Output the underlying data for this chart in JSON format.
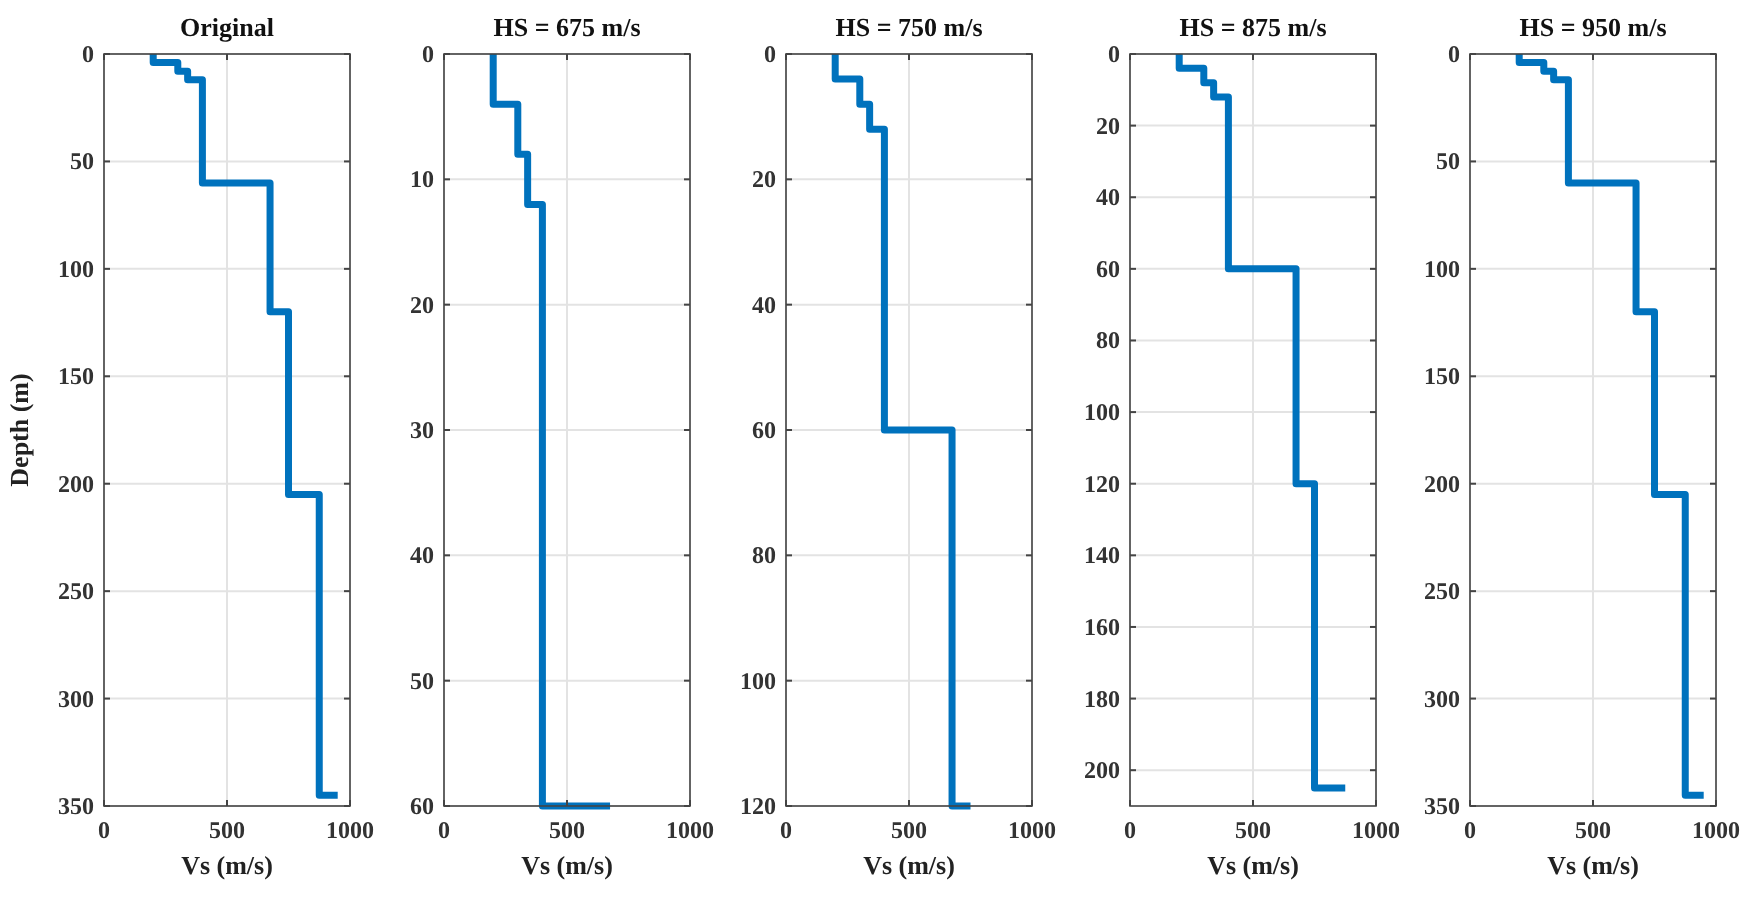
{
  "chart_data": [
    {
      "type": "line",
      "title": "Original",
      "xlabel": "Vs (m/s)",
      "ylabel": "Depth (m)",
      "xlim": [
        0,
        1000
      ],
      "xticks": [
        0,
        500,
        1000
      ],
      "ylim": [
        350,
        0
      ],
      "yticks": [
        0,
        50,
        100,
        150,
        200,
        250,
        300,
        350
      ],
      "grid": true,
      "line_style": "solid",
      "series": [
        {
          "color": "#0072bd",
          "x": [
            200,
            200,
            300,
            300,
            340,
            340,
            400,
            400,
            675,
            675,
            750,
            750,
            875,
            875,
            950
          ],
          "values": [
            0,
            4,
            4,
            8,
            8,
            12,
            12,
            60,
            60,
            120,
            120,
            205,
            205,
            345,
            345
          ]
        }
      ]
    },
    {
      "type": "line",
      "title": "HS = 675 m/s",
      "xlabel": "Vs (m/s)",
      "xlim": [
        0,
        1000
      ],
      "xticks": [
        0,
        500,
        1000
      ],
      "ylim": [
        60,
        0
      ],
      "yticks": [
        0,
        10,
        20,
        30,
        40,
        50,
        60
      ],
      "grid": true,
      "line_style": "solid",
      "series": [
        {
          "color": "#0072bd",
          "x": [
            200,
            200,
            300,
            300,
            340,
            340,
            400,
            400,
            675
          ],
          "values": [
            0,
            4,
            4,
            8,
            8,
            12,
            12,
            60,
            60
          ]
        }
      ]
    },
    {
      "type": "line",
      "title": "HS = 750 m/s",
      "xlabel": "Vs (m/s)",
      "xlim": [
        0,
        1000
      ],
      "xticks": [
        0,
        500,
        1000
      ],
      "ylim": [
        120,
        0
      ],
      "yticks": [
        0,
        20,
        40,
        60,
        80,
        100,
        120
      ],
      "grid": true,
      "line_style": "solid",
      "series": [
        {
          "color": "#0072bd",
          "x": [
            200,
            200,
            300,
            300,
            340,
            340,
            400,
            400,
            675,
            675,
            750
          ],
          "values": [
            0,
            4,
            4,
            8,
            8,
            12,
            12,
            60,
            60,
            120,
            120
          ]
        }
      ]
    },
    {
      "type": "line",
      "title": "HS = 875 m/s",
      "xlabel": "Vs (m/s)",
      "xlim": [
        0,
        1000
      ],
      "xticks": [
        0,
        500,
        1000
      ],
      "ylim": [
        210,
        0
      ],
      "yticks": [
        0,
        20,
        40,
        60,
        80,
        100,
        120,
        140,
        160,
        180,
        200
      ],
      "grid": true,
      "line_style": "solid",
      "series": [
        {
          "color": "#0072bd",
          "x": [
            200,
            200,
            300,
            300,
            340,
            340,
            400,
            400,
            675,
            675,
            750,
            750,
            875
          ],
          "values": [
            0,
            4,
            4,
            8,
            8,
            12,
            12,
            60,
            60,
            120,
            120,
            205,
            205
          ]
        }
      ]
    },
    {
      "type": "line",
      "title": "HS = 950 m/s",
      "xlabel": "Vs (m/s)",
      "xlim": [
        0,
        1000
      ],
      "xticks": [
        0,
        500,
        1000
      ],
      "ylim": [
        350,
        0
      ],
      "yticks": [
        0,
        50,
        100,
        150,
        200,
        250,
        300,
        350
      ],
      "grid": true,
      "line_style": "solid",
      "series": [
        {
          "color": "#0072bd",
          "x": [
            200,
            200,
            300,
            300,
            340,
            340,
            400,
            400,
            675,
            675,
            750,
            750,
            875,
            875,
            950
          ],
          "values": [
            0,
            4,
            4,
            8,
            8,
            12,
            12,
            60,
            60,
            120,
            120,
            205,
            205,
            345,
            345
          ]
        }
      ]
    }
  ]
}
